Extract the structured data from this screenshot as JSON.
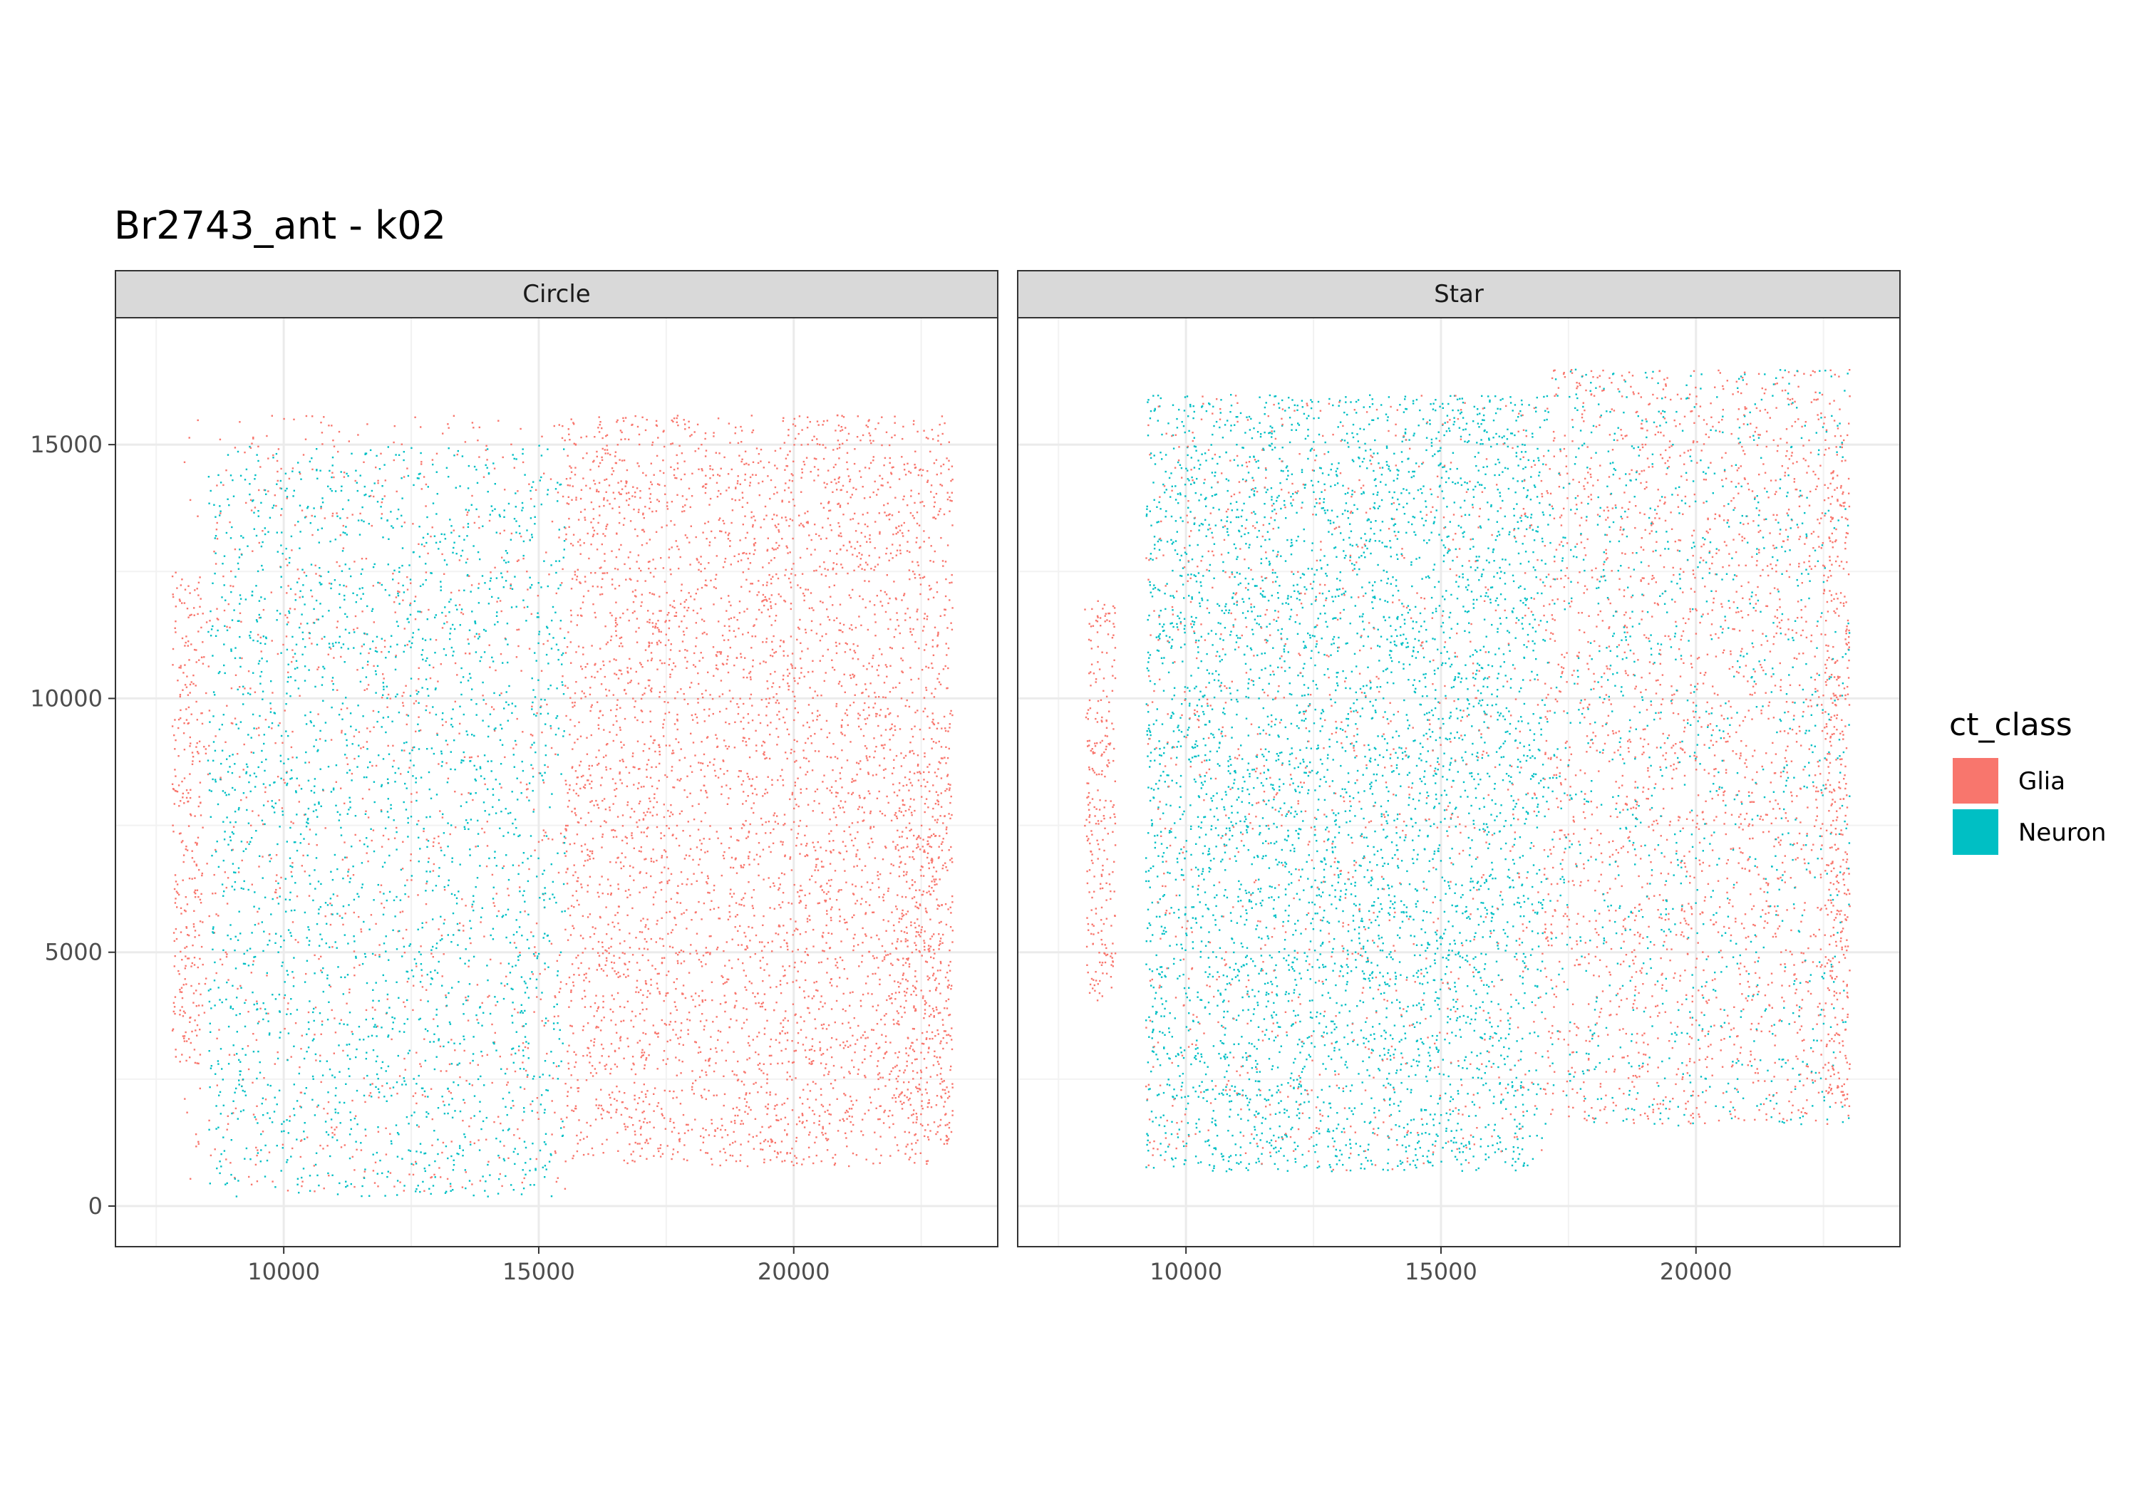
{
  "chart_data": {
    "type": "scatter",
    "title": "Br2743_ant - k02",
    "xlabel": "",
    "ylabel": "",
    "xlim": [
      6700,
      24000
    ],
    "ylim": [
      -800,
      17500
    ],
    "x_ticks": [
      10000,
      15000,
      20000
    ],
    "y_ticks": [
      0,
      5000,
      10000,
      15000
    ],
    "grid": true,
    "legend": {
      "title": "ct_class",
      "position": "right",
      "entries": [
        {
          "label": "Glia",
          "color": "#F8766D"
        },
        {
          "label": "Neuron",
          "color": "#00BFC4"
        }
      ]
    },
    "panels": [
      {
        "label": "Circle",
        "regions": [
          {
            "class": "Glia",
            "x_range": [
              8000,
              15500
            ],
            "y_range": [
              300,
              15600
            ],
            "density": "low"
          },
          {
            "class": "Neuron",
            "x_range": [
              8500,
              15500
            ],
            "y_range": [
              200,
              15000
            ],
            "density": "medium"
          },
          {
            "class": "Glia",
            "x_range": [
              15500,
              23100
            ],
            "y_range": [
              800,
              15600
            ],
            "density": "high"
          },
          {
            "class": "Glia",
            "x_range": [
              7800,
              8400
            ],
            "y_range": [
              2800,
              12500
            ],
            "density": "edge"
          },
          {
            "class": "Glia",
            "x_range": [
              22000,
              23100
            ],
            "y_range": [
              1300,
              8500
            ],
            "density": "edge"
          }
        ]
      },
      {
        "label": "Star",
        "regions": [
          {
            "class": "Neuron",
            "x_range": [
              9200,
              17000
            ],
            "y_range": [
              700,
              16000
            ],
            "density": "high"
          },
          {
            "class": "Glia",
            "x_range": [
              9200,
              17000
            ],
            "y_range": [
              700,
              16000
            ],
            "density": "low"
          },
          {
            "class": "Glia",
            "x_range": [
              17000,
              23000
            ],
            "y_range": [
              1600,
              16500
            ],
            "density": "medium"
          },
          {
            "class": "Neuron",
            "x_range": [
              17000,
              23000
            ],
            "y_range": [
              1600,
              16500
            ],
            "density": "low"
          },
          {
            "class": "Glia",
            "x_range": [
              8000,
              8600
            ],
            "y_range": [
              4000,
              12000
            ],
            "density": "edge"
          },
          {
            "class": "Glia",
            "x_range": [
              22500,
              23000
            ],
            "y_range": [
              2000,
              15000
            ],
            "density": "edge"
          }
        ]
      }
    ]
  }
}
